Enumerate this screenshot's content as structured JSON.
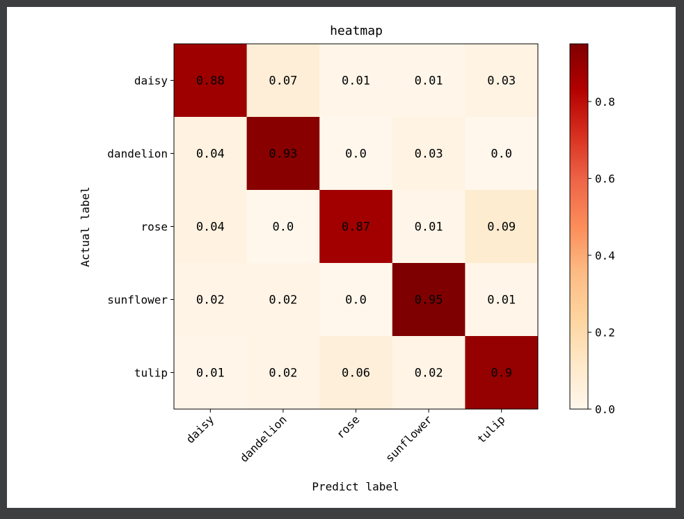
{
  "chart_data": {
    "type": "heatmap",
    "title": "heatmap",
    "xlabel": "Predict label",
    "ylabel": "Actual label",
    "x_categories": [
      "daisy",
      "dandelion",
      "rose",
      "sunflower",
      "tulip"
    ],
    "y_categories": [
      "daisy",
      "dandelion",
      "rose",
      "sunflower",
      "tulip"
    ],
    "values": [
      [
        0.88,
        0.07,
        0.01,
        0.01,
        0.03
      ],
      [
        0.04,
        0.93,
        0.0,
        0.03,
        0.0
      ],
      [
        0.04,
        0.0,
        0.87,
        0.01,
        0.09
      ],
      [
        0.02,
        0.02,
        0.0,
        0.95,
        0.01
      ],
      [
        0.01,
        0.02,
        0.06,
        0.02,
        0.9
      ]
    ],
    "value_labels": [
      [
        "0.88",
        "0.07",
        "0.01",
        "0.01",
        "0.03"
      ],
      [
        "0.04",
        "0.93",
        "0.0",
        "0.03",
        "0.0"
      ],
      [
        "0.04",
        "0.0",
        "0.87",
        "0.01",
        "0.09"
      ],
      [
        "0.02",
        "0.02",
        "0.0",
        "0.95",
        "0.01"
      ],
      [
        "0.01",
        "0.02",
        "0.06",
        "0.02",
        "0.9"
      ]
    ],
    "colormap": "OrRd",
    "color_range": [
      0.0,
      0.95
    ],
    "colorbar": {
      "ticks": [
        0.0,
        0.2,
        0.4,
        0.6,
        0.8
      ],
      "tick_labels": [
        "0.0",
        "0.2",
        "0.4",
        "0.6",
        "0.8"
      ]
    },
    "xtick_rotation": 45,
    "legend": "colorbar-right"
  }
}
